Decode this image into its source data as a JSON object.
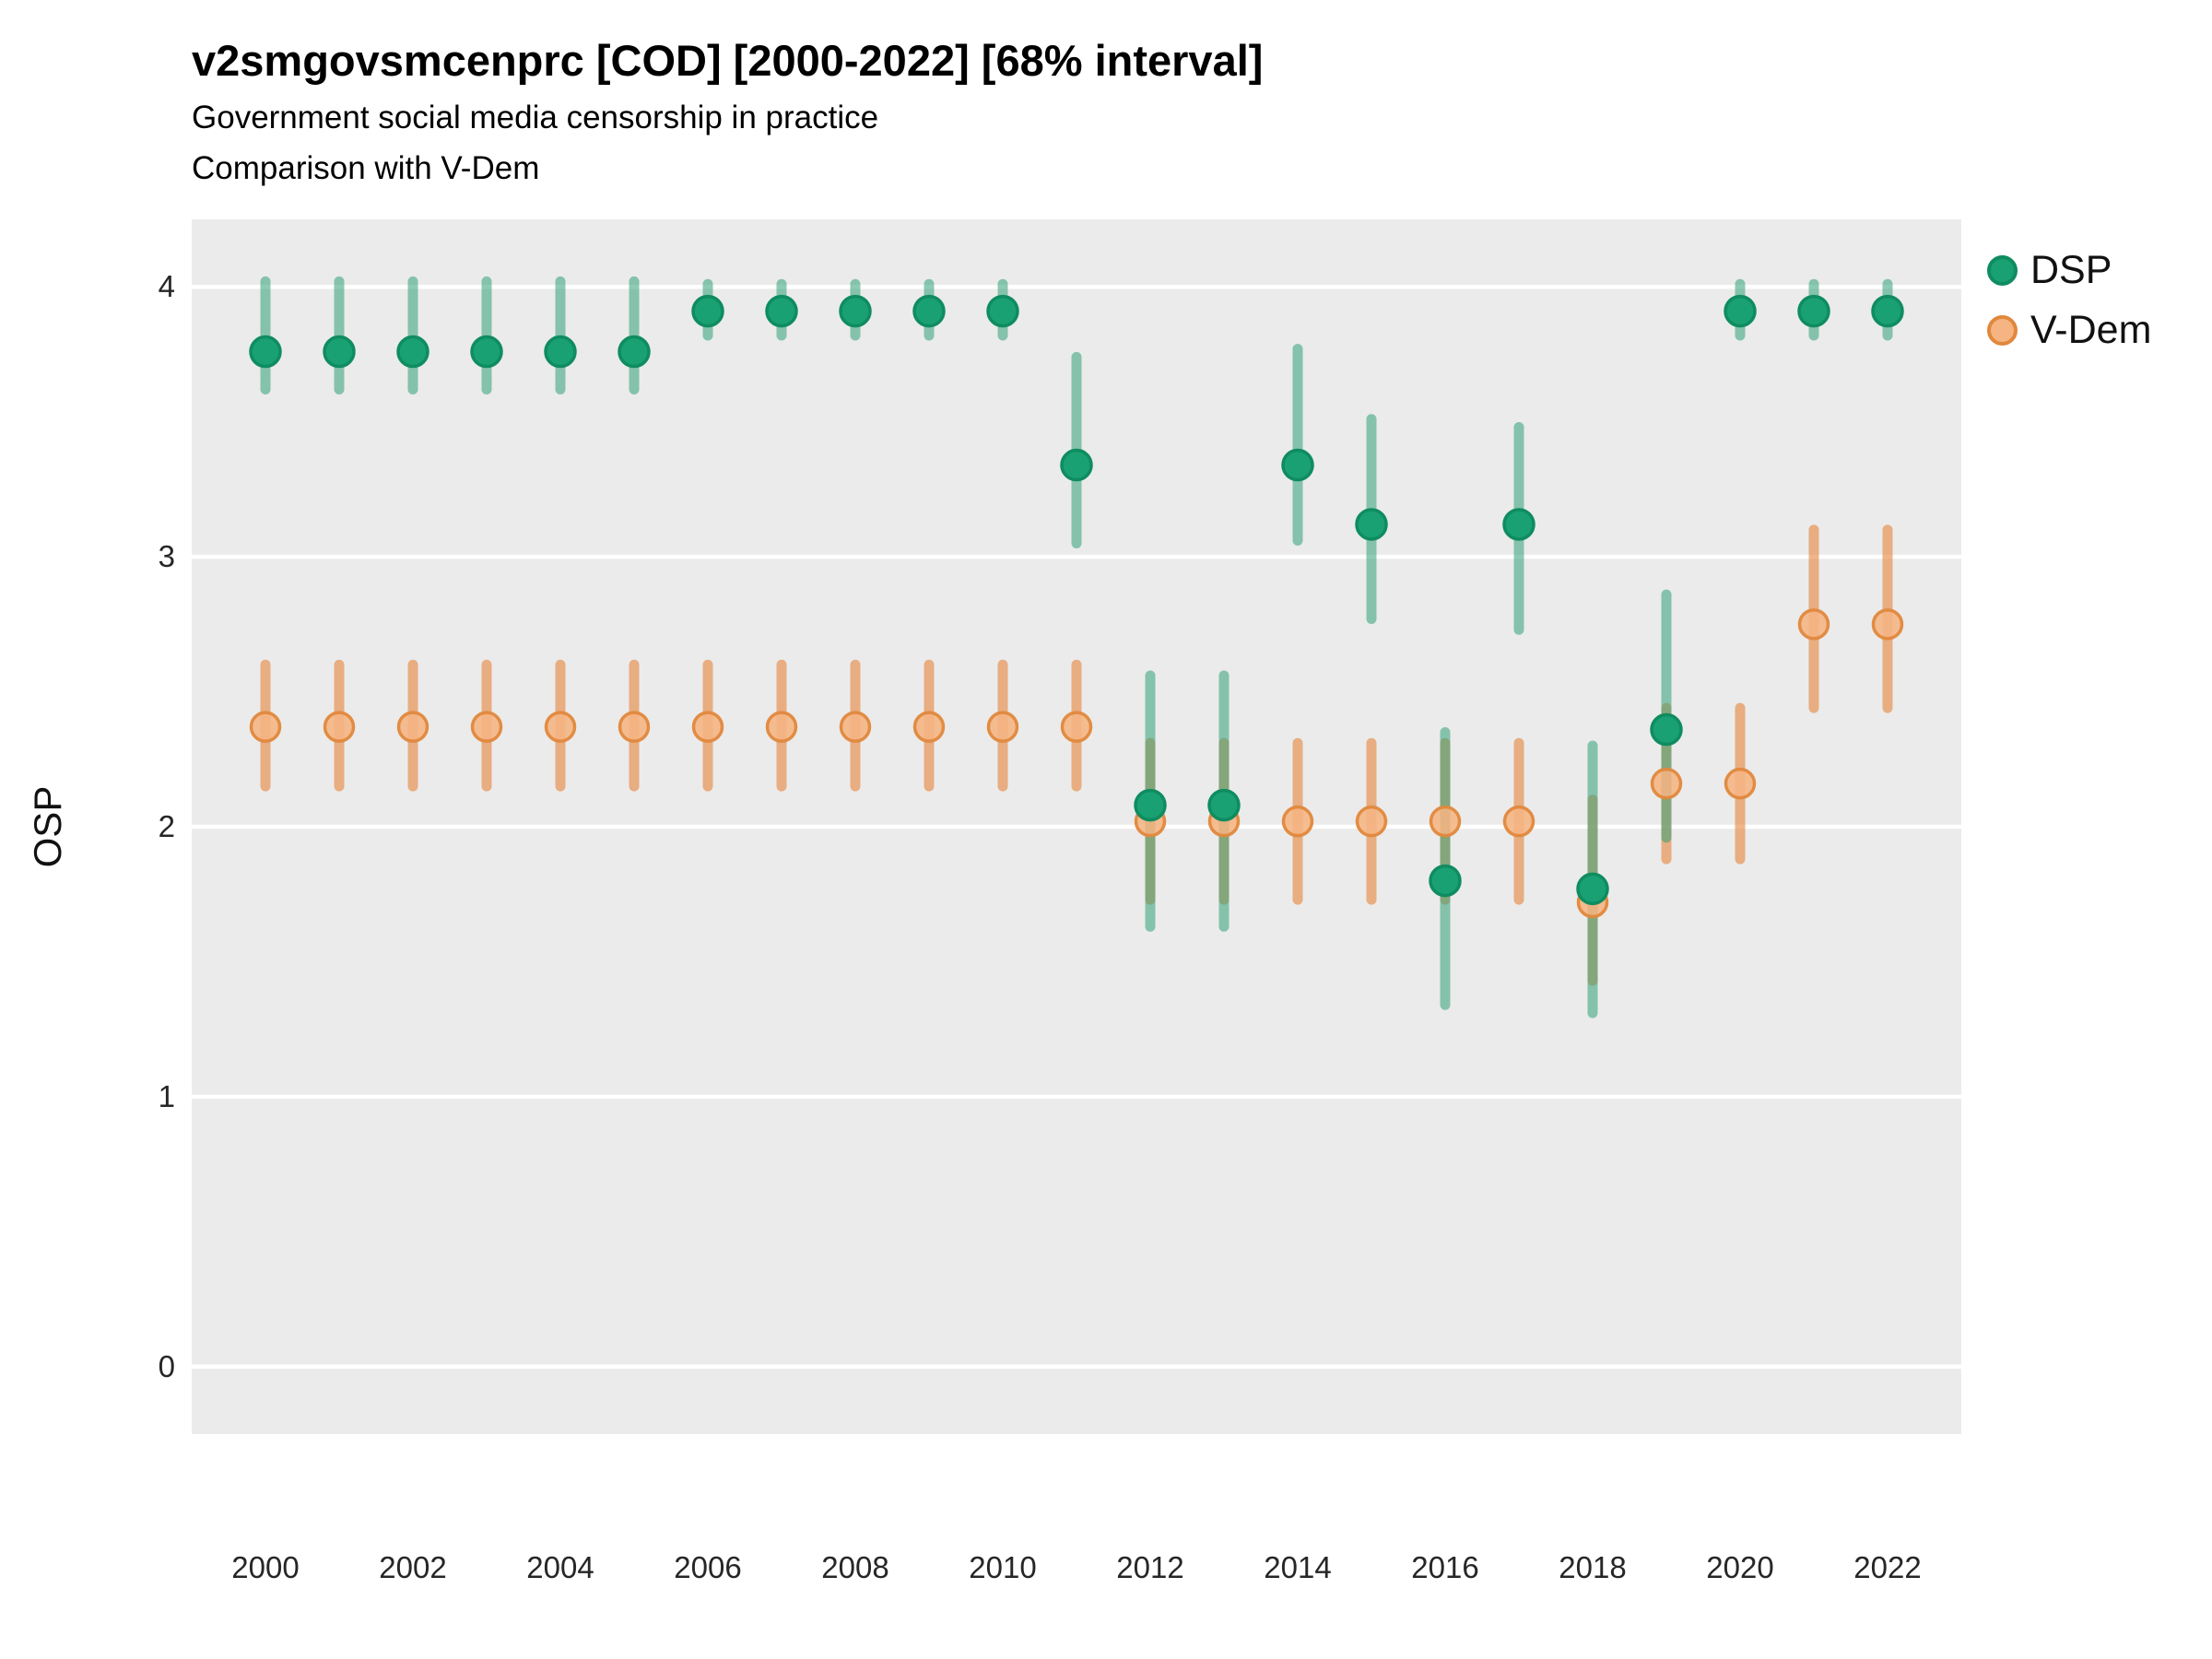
{
  "header": {
    "title": "v2smgovsmcenprc [COD] [2000-2022] [68% interval]",
    "subtitle": "Government social media censorship in practice",
    "subtitle2": "Comparison with V-Dem"
  },
  "colors": {
    "panel_background": "#ebebeb",
    "gridline": "#ffffff",
    "dsp_point_fill": "#1aa173",
    "dsp_point_stroke": "#0f8c60",
    "dsp_bar": "rgba(47,160,118,0.55)",
    "vdem_point_fill": "rgba(245,180,130,0.88)",
    "vdem_point_stroke": "rgba(224,136,61,0.95)",
    "vdem_bar": "rgba(230,132,56,0.6)",
    "tick_text": "#262626"
  },
  "chart_data": {
    "type": "scatter",
    "title": "v2smgovsmcenprc [COD] [2000-2022] [68% interval]",
    "subtitle": "Government social media censorship in practice",
    "annotation": "Comparison with V-Dem",
    "interval": "68%",
    "xlabel": "",
    "ylabel": "OSP",
    "xlim": [
      1999,
      2023
    ],
    "ylim": [
      -0.25,
      4.25
    ],
    "xticks": [
      2000,
      2002,
      2004,
      2006,
      2008,
      2010,
      2012,
      2014,
      2016,
      2018,
      2020,
      2022
    ],
    "yticks": [
      0,
      1,
      2,
      3,
      4
    ],
    "grid": "horizontal major white gridlines on gray panel, no vertical gridlines",
    "legend_position": "right",
    "x": [
      2000,
      2001,
      2002,
      2003,
      2004,
      2005,
      2006,
      2007,
      2008,
      2009,
      2010,
      2011,
      2012,
      2013,
      2014,
      2015,
      2016,
      2017,
      2018,
      2019,
      2020,
      2021,
      2022
    ],
    "series": [
      {
        "name": "DSP",
        "color": "#1aa173",
        "est": [
          3.76,
          3.76,
          3.76,
          3.76,
          3.76,
          3.76,
          3.91,
          3.91,
          3.91,
          3.91,
          3.91,
          3.34,
          2.08,
          2.08,
          3.34,
          3.12,
          1.8,
          3.12,
          1.77,
          2.36,
          3.91,
          3.91,
          3.91
        ],
        "lo": [
          3.62,
          3.62,
          3.62,
          3.62,
          3.62,
          3.62,
          3.82,
          3.82,
          3.82,
          3.82,
          3.82,
          3.05,
          1.63,
          1.63,
          3.06,
          2.77,
          1.34,
          2.73,
          1.31,
          1.96,
          3.82,
          3.82,
          3.82
        ],
        "hi": [
          4.02,
          4.02,
          4.02,
          4.02,
          4.02,
          4.02,
          4.01,
          4.01,
          4.01,
          4.01,
          4.01,
          3.74,
          2.56,
          2.56,
          3.77,
          3.51,
          2.35,
          3.48,
          2.3,
          2.86,
          4.01,
          4.01,
          4.01
        ]
      },
      {
        "name": "V-Dem",
        "color": "#f0a875",
        "est": [
          2.37,
          2.37,
          2.37,
          2.37,
          2.37,
          2.37,
          2.37,
          2.37,
          2.37,
          2.37,
          2.37,
          2.37,
          2.02,
          2.02,
          2.02,
          2.02,
          2.02,
          2.02,
          1.72,
          2.16,
          2.16,
          2.75,
          2.75
        ],
        "lo": [
          2.15,
          2.15,
          2.15,
          2.15,
          2.15,
          2.15,
          2.15,
          2.15,
          2.15,
          2.15,
          2.15,
          2.15,
          1.73,
          1.73,
          1.73,
          1.73,
          1.73,
          1.73,
          1.43,
          1.88,
          1.88,
          2.44,
          2.44
        ],
        "hi": [
          2.6,
          2.6,
          2.6,
          2.6,
          2.6,
          2.6,
          2.6,
          2.6,
          2.6,
          2.6,
          2.6,
          2.6,
          2.31,
          2.31,
          2.31,
          2.31,
          2.31,
          2.31,
          2.1,
          2.44,
          2.44,
          3.1,
          3.1
        ]
      }
    ]
  }
}
